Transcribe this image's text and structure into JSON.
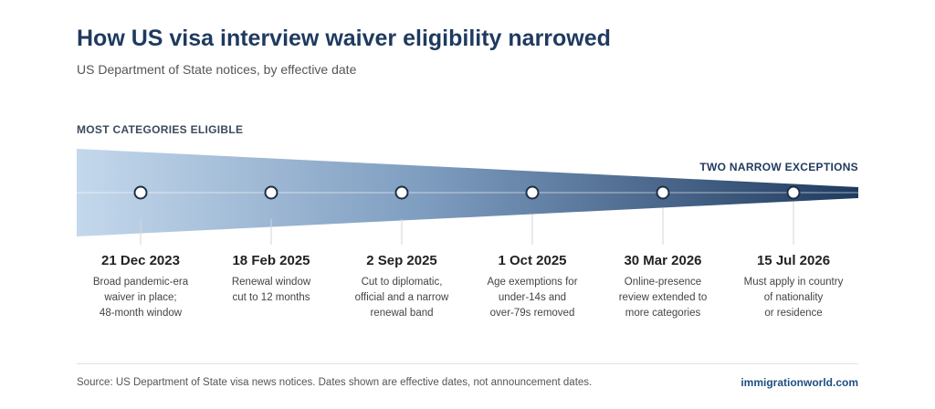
{
  "title": "How US visa interview waiver eligibility narrowed",
  "subtitle": "US Department of State notices, by effective date",
  "funnel": {
    "start_label": "MOST CATEGORIES ELIGIBLE",
    "end_label": "TWO NARROW EXCEPTIONS",
    "color_start": "#c4d8ec",
    "color_end": "#1f3a5f"
  },
  "events": [
    {
      "date": "21 Dec 2023",
      "desc": [
        "Broad pandemic-era",
        "waiver in place;",
        "48-month window"
      ]
    },
    {
      "date": "18 Feb 2025",
      "desc": [
        "Renewal window",
        "cut to 12 months"
      ]
    },
    {
      "date": "2 Sep 2025",
      "desc": [
        "Cut to diplomatic,",
        "official and a narrow",
        "renewal band"
      ]
    },
    {
      "date": "1 Oct 2025",
      "desc": [
        "Age exemptions for",
        "under-14s and",
        "over-79s removed"
      ]
    },
    {
      "date": "30 Mar 2026",
      "desc": [
        "Online-presence",
        "review extended to",
        "more categories"
      ]
    },
    {
      "date": "15 Jul 2026",
      "desc": [
        "Must apply in country",
        "of nationality",
        "or residence"
      ]
    }
  ],
  "footer": {
    "source": "Source: US Department of State visa news notices. Dates shown are effective dates, not announcement dates.",
    "brand": "immigrationworld.com"
  }
}
